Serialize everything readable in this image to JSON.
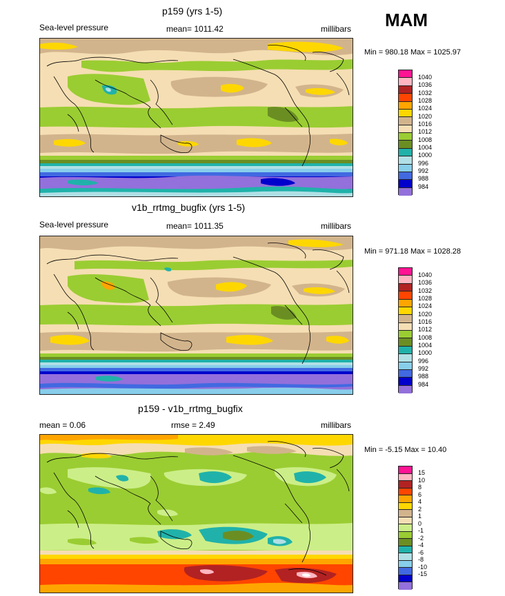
{
  "season": "MAM",
  "panels": [
    {
      "title": "p159 (yrs 1-5)",
      "left_label": "Sea-level pressure",
      "center_label": "mean= 1011.42",
      "units": "millibars",
      "minmax": "Min = 980.18 Max = 1025.97",
      "legend": [
        {
          "label": "1040",
          "color": "#ff1493"
        },
        {
          "label": "1036",
          "color": "#ffb6c1"
        },
        {
          "label": "1032",
          "color": "#b22222"
        },
        {
          "label": "1028",
          "color": "#ff4500"
        },
        {
          "label": "1024",
          "color": "#ffa500"
        },
        {
          "label": "1020",
          "color": "#ffd700"
        },
        {
          "label": "1016",
          "color": "#d2b48c"
        },
        {
          "label": "1012",
          "color": "#f5deb3"
        },
        {
          "label": "1008",
          "color": "#9acd32"
        },
        {
          "label": "1004",
          "color": "#6b8e23"
        },
        {
          "label": "1000",
          "color": "#20b2aa"
        },
        {
          "label": "996",
          "color": "#b0e0e6"
        },
        {
          "label": "992",
          "color": "#87ceeb"
        },
        {
          "label": "988",
          "color": "#4169e1"
        },
        {
          "label": "984",
          "color": "#0000cd"
        },
        {
          "label": "",
          "color": "#9370db"
        }
      ]
    },
    {
      "title": "v1b_rrtmg_bugfix (yrs 1-5)",
      "left_label": "Sea-level pressure",
      "center_label": "mean= 1011.35",
      "units": "millibars",
      "minmax": "Min = 971.18 Max = 1028.28",
      "legend": [
        {
          "label": "1040",
          "color": "#ff1493"
        },
        {
          "label": "1036",
          "color": "#ffb6c1"
        },
        {
          "label": "1032",
          "color": "#b22222"
        },
        {
          "label": "1028",
          "color": "#ff4500"
        },
        {
          "label": "1024",
          "color": "#ffa500"
        },
        {
          "label": "1020",
          "color": "#ffd700"
        },
        {
          "label": "1016",
          "color": "#d2b48c"
        },
        {
          "label": "1012",
          "color": "#f5deb3"
        },
        {
          "label": "1008",
          "color": "#9acd32"
        },
        {
          "label": "1004",
          "color": "#6b8e23"
        },
        {
          "label": "1000",
          "color": "#20b2aa"
        },
        {
          "label": "996",
          "color": "#b0e0e6"
        },
        {
          "label": "992",
          "color": "#87ceeb"
        },
        {
          "label": "988",
          "color": "#4169e1"
        },
        {
          "label": "984",
          "color": "#0000cd"
        },
        {
          "label": "",
          "color": "#9370db"
        }
      ]
    },
    {
      "title": "p159 - v1b_rrtmg_bugfix",
      "left_label": "mean =   0.06",
      "center_label": "rmse =   2.49",
      "units": "millibars",
      "minmax": "Min =  -5.15 Max =  10.40",
      "legend": [
        {
          "label": "15",
          "color": "#ff1493"
        },
        {
          "label": "10",
          "color": "#ffb6c1"
        },
        {
          "label": "8",
          "color": "#b22222"
        },
        {
          "label": "6",
          "color": "#ff4500"
        },
        {
          "label": "4",
          "color": "#ffa500"
        },
        {
          "label": "2",
          "color": "#ffd700"
        },
        {
          "label": "1",
          "color": "#d2b48c"
        },
        {
          "label": "0",
          "color": "#f5deb3"
        },
        {
          "label": "-1",
          "color": "#ccee88"
        },
        {
          "label": "-2",
          "color": "#9acd32"
        },
        {
          "label": "-4",
          "color": "#6b8e23"
        },
        {
          "label": "-6",
          "color": "#20b2aa"
        },
        {
          "label": "-8",
          "color": "#b0e0e6"
        },
        {
          "label": "-10",
          "color": "#87ceeb"
        },
        {
          "label": "-15",
          "color": "#4169e1"
        },
        {
          "label": "",
          "color": "#0000cd"
        },
        {
          "label": "",
          "color": "#9370db"
        }
      ]
    }
  ]
}
